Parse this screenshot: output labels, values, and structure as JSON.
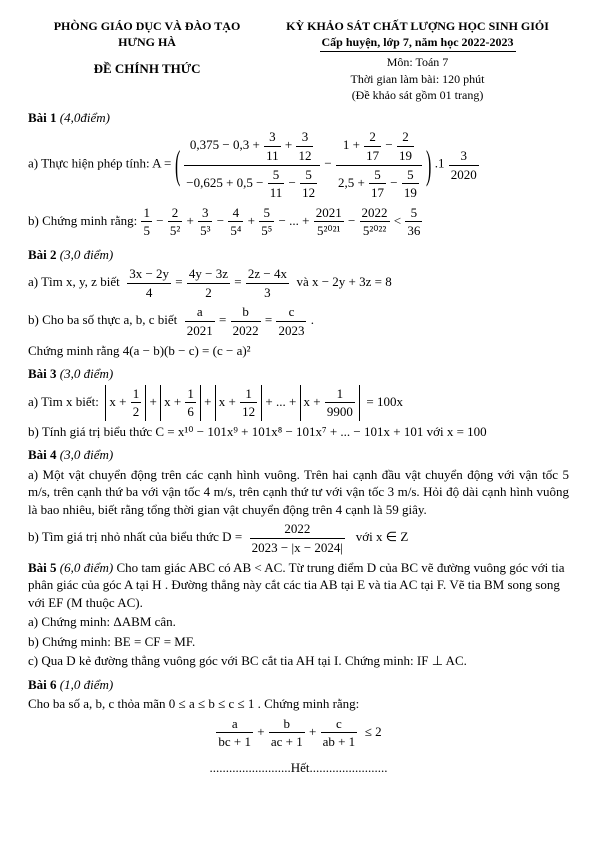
{
  "header": {
    "dept": "PHÒNG GIÁO DỤC VÀ ĐÀO TẠO",
    "district": "HƯNG HÀ",
    "exam": "KỲ KHẢO SÁT CHẤT LƯỢNG HỌC SINH GIỎI",
    "level": "Cấp huyện, lớp 7, năm học 2022-2023",
    "official": "ĐỀ CHÍNH THỨC",
    "subject": "Môn: Toán 7",
    "time": "Thời gian làm bài: 120 phút",
    "pages": "(Đề khảo sát gồm 01 trang)"
  },
  "bai1": {
    "title": "Bài 1",
    "pts": "(4,0điểm)",
    "a_label": "a) Thực hiện phép tính:  A =",
    "big1_num": "0,375 − 0,3 + ",
    "big1_f1n": "3",
    "big1_f1d": "11",
    "big1_f2n": "3",
    "big1_f2d": "12",
    "big1_den": "−0,625 + 0,5 − ",
    "big1_f3n": "5",
    "big1_f3d": "11",
    "big1_f4n": "5",
    "big1_f4d": "12",
    "big2_num": "1 + ",
    "big2_f1n": "2",
    "big2_f1d": "17",
    "big2_f2n": "2",
    "big2_f2d": "19",
    "big2_den": "2,5 + ",
    "big2_f3n": "5",
    "big2_f3d": "17",
    "big2_f4n": "5",
    "big2_f4d": "19",
    "mul_f_n": "3",
    "mul_f_d": "2020",
    "b_label": "b) Chứng minh rằng:",
    "b_series_head": "",
    "s1n": "1",
    "s1d": "5",
    "s2n": "2",
    "s2d": "5²",
    "s3n": "3",
    "s3d": "5³",
    "s4n": "4",
    "s4d": "5⁴",
    "s5n": "5",
    "s5d": "5⁵",
    "s6n": "2021",
    "s6d": "5²⁰²¹",
    "s7n": "2022",
    "s7d": "5²⁰²²",
    "rhs_n": "5",
    "rhs_d": "36"
  },
  "bai2": {
    "title": "Bài 2",
    "pts": "(3,0 điểm)",
    "a_label": "a) Tìm x, y, z biết",
    "eq1_n": "3x − 2y",
    "eq1_d": "4",
    "eq2_n": "4y − 3z",
    "eq2_d": "2",
    "eq3_n": "2z − 4x",
    "eq3_d": "3",
    "a_tail": "và  x − 2y + 3z = 8",
    "b_label": "b) Cho ba số thực a, b, c biết",
    "p1n": "a",
    "p1d": "2021",
    "p2n": "b",
    "p2d": "2022",
    "p3n": "c",
    "p3d": "2023",
    "b_tail": ".",
    "concl": "Chứng minh rằng  4(a − b)(b − c) = (c − a)²"
  },
  "bai3": {
    "title": "Bài 3",
    "pts": "(3,0 điểm)",
    "a_label": "a) Tìm x biết:",
    "t1": "x + ",
    "t1f_n": "1",
    "t1f_d": "2",
    "t2": "x + ",
    "t2f_n": "1",
    "t2f_d": "6",
    "t3": "x + ",
    "t3f_n": "1",
    "t3f_d": "12",
    "dots": "+ ... +",
    "t4": "x + ",
    "t4f_n": "1",
    "t4f_d": "9900",
    "eq": "= 100x",
    "b_label": "b) Tính giá trị biểu thức  C = x¹⁰ − 101x⁹ + 101x⁸ − 101x⁷ + ... − 101x + 101  với x = 100"
  },
  "bai4": {
    "title": "Bài 4",
    "pts": "(3,0 điểm)",
    "a": "a) Một vật chuyển động trên các cạnh hình vuông. Trên hai cạnh đầu vật chuyển động với vận tốc 5 m/s, trên cạnh thứ ba với vận tốc 4 m/s, trên cạnh thứ tư với vận tốc 3 m/s. Hỏi độ dài cạnh hình vuông là bao nhiêu, biết rằng tổng thời gian vật chuyển động trên 4 cạnh là 59 giây.",
    "b_label": "b) Tìm giá trị nhỏ nhất của biểu thức  D =",
    "Dn": "2022",
    "Dd": "2023 − |x − 2024|",
    "b_tail": "với  x ∈ Z"
  },
  "bai5": {
    "title": "Bài 5",
    "pts": "(6,0 điểm)",
    "stem": "Cho tam giác ABC có AB < AC. Từ trung điểm D của BC vẽ đường vuông góc với tia phân giác của góc A tại H . Đường thẳng này cắt các tia AB tại E và tia AC tại F. Vẽ tia BM song song với EF (M thuộc AC).",
    "a": "a) Chứng minh: ΔABM cân.",
    "b": "b) Chứng minh: BE = CF = MF.",
    "c": "c) Qua D kẻ đường thẳng vuông góc với BC cắt tia AH tại I. Chứng minh: IF ⊥ AC."
  },
  "bai6": {
    "title": "Bài 6",
    "pts": "(1,0 điểm)",
    "stem": "Cho ba số a, b, c thỏa mãn  0 ≤ a ≤ b ≤ c ≤ 1 . Chứng minh rằng:",
    "f1n": "a",
    "f1d": "bc + 1",
    "f2n": "b",
    "f2d": "ac + 1",
    "f3n": "c",
    "f3d": "ab + 1",
    "end": "≤ 2"
  },
  "end": ".........................Hết........................"
}
